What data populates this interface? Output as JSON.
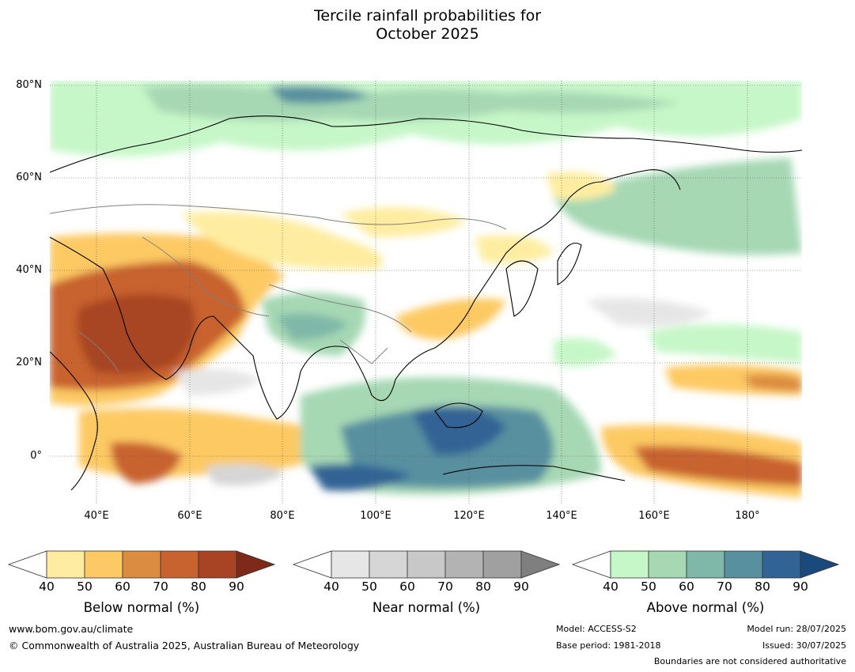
{
  "title_line1": "Tercile rainfall probabilities for",
  "title_line2": "October 2025",
  "lat_labels": [
    "80°N",
    "60°N",
    "40°N",
    "20°N",
    "0°"
  ],
  "lon_labels": [
    "40°E",
    "60°E",
    "80°E",
    "100°E",
    "120°E",
    "140°E",
    "160°E",
    "180°"
  ],
  "colorbars": [
    {
      "label": "Below normal (%)",
      "ticks": [
        "40",
        "50",
        "60",
        "70",
        "80",
        "90"
      ],
      "colors": [
        "#feeda0",
        "#fdc964",
        "#dc8c41",
        "#c8622f",
        "#a84424"
      ],
      "extend_color": "#7d2b18"
    },
    {
      "label": "Near normal (%)",
      "ticks": [
        "40",
        "50",
        "60",
        "70",
        "80",
        "90"
      ],
      "colors": [
        "#e6e6e6",
        "#d6d6d6",
        "#c8c8c8",
        "#b3b3b3",
        "#a0a0a0"
      ],
      "extend_color": "#7f7f7f"
    },
    {
      "label": "Above normal (%)",
      "ticks": [
        "40",
        "50",
        "60",
        "70",
        "80",
        "90"
      ],
      "colors": [
        "#c6f7c8",
        "#a6d8b4",
        "#7fb8a8",
        "#5890a0",
        "#316494"
      ],
      "extend_color": "#1a4a7c"
    }
  ],
  "footer": {
    "website": "www.bom.gov.au/climate",
    "copyright": "© Commonwealth of Australia 2025, Australian Bureau of Meteorology",
    "model": "Model: ACCESS-S2",
    "base_period": "Base period: 1981-2018",
    "model_run": "Model run: 28/07/2025",
    "issued": "Issued: 30/07/2025",
    "disclaimer": "Boundaries are not considered authoritative"
  }
}
